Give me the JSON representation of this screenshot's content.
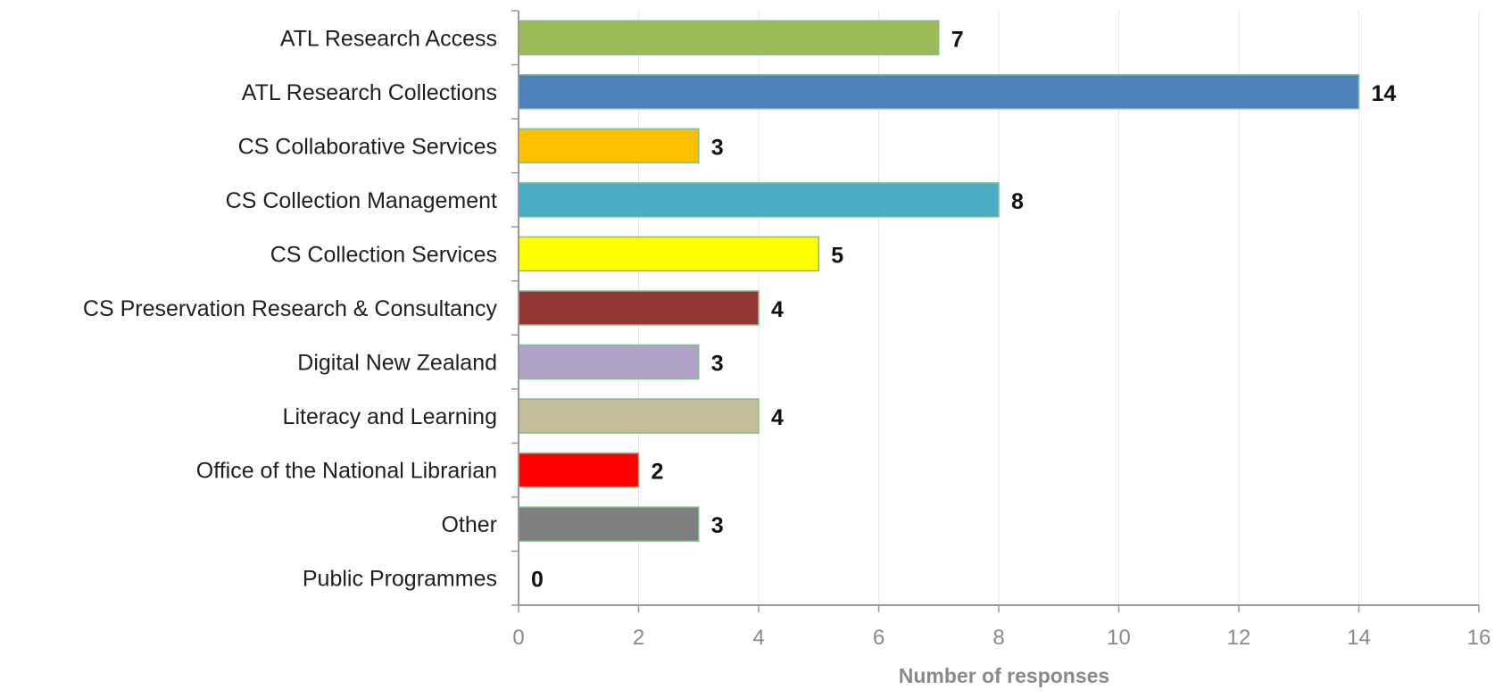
{
  "chart_data": {
    "type": "bar",
    "orientation": "horizontal",
    "title": "",
    "xlabel": "Number of responses",
    "ylabel": "",
    "xlim": [
      0,
      16
    ],
    "x_ticks": [
      0,
      2,
      4,
      6,
      8,
      10,
      12,
      14,
      16
    ],
    "grid": "vertical",
    "legend": "none",
    "categories": [
      "ATL Research Access",
      "ATL Research Collections",
      "CS Collaborative Services",
      "CS Collection Management",
      "CS Collection Services",
      "CS Preservation Research & Consultancy",
      "Digital New Zealand",
      "Literacy and Learning",
      "Office of the National Librarian",
      "Other",
      "Public Programmes"
    ],
    "values": [
      7,
      14,
      3,
      8,
      5,
      4,
      3,
      4,
      2,
      3,
      0
    ],
    "colors": [
      "#9bbb59",
      "#4f81bd",
      "#ffc000",
      "#4bacc6",
      "#ffff00",
      "#953735",
      "#b2a1c7",
      "#c4bd97",
      "#ff0000",
      "#7f7f7f",
      "#d9d9d9"
    ],
    "bar_border_color": "#7fbf8f",
    "axis_color": "#999999",
    "grid_color": "#e6e6e6"
  }
}
